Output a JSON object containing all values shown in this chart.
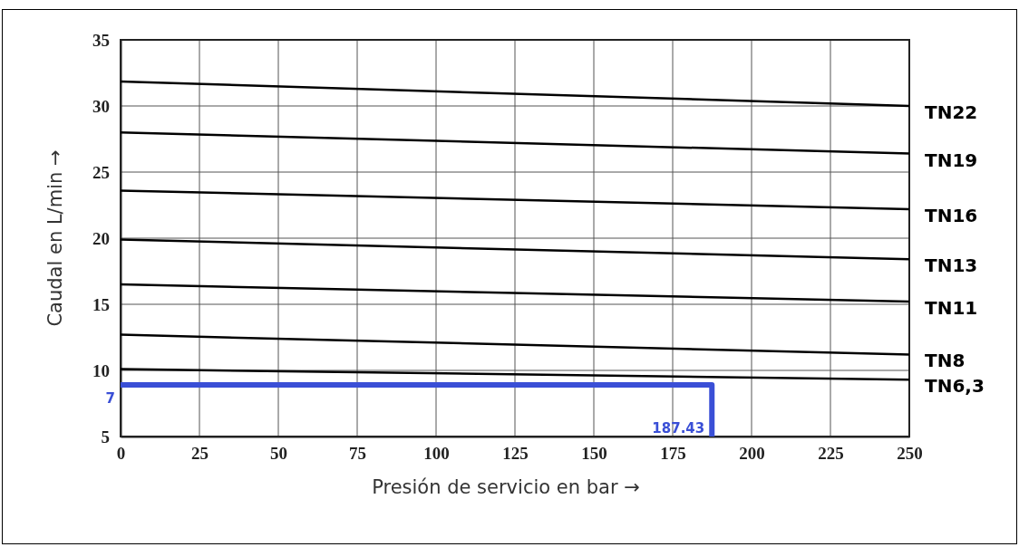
{
  "chart_data": {
    "type": "line",
    "xlabel": "Presión de servicio en bar →",
    "ylabel": "Caudal en L/min →",
    "xlim": [
      0,
      250
    ],
    "xticks": [
      0,
      25,
      50,
      75,
      100,
      125,
      150,
      175,
      200,
      225,
      250
    ],
    "ylim": [
      5,
      35
    ],
    "yticks": [
      5,
      10,
      15,
      20,
      25,
      30,
      35
    ],
    "grid": true,
    "marker": "none",
    "line_style": "solid",
    "series": [
      {
        "name": "TN22",
        "color": "#000000",
        "x": [
          0,
          250
        ],
        "values": [
          31.85,
          30.0
        ]
      },
      {
        "name": "TN19",
        "color": "#000000",
        "x": [
          0,
          250
        ],
        "values": [
          28.0,
          26.4
        ]
      },
      {
        "name": "TN16",
        "color": "#000000",
        "x": [
          0,
          250
        ],
        "values": [
          23.6,
          22.2
        ]
      },
      {
        "name": "TN13",
        "color": "#000000",
        "x": [
          0,
          250
        ],
        "values": [
          19.9,
          18.4
        ]
      },
      {
        "name": "TN11",
        "color": "#000000",
        "x": [
          0,
          250
        ],
        "values": [
          16.5,
          15.2
        ]
      },
      {
        "name": "TN8",
        "color": "#000000",
        "x": [
          0,
          250
        ],
        "values": [
          12.7,
          11.2
        ]
      },
      {
        "name": "TN6,3",
        "color": "#000000",
        "x": [
          0,
          250
        ],
        "values": [
          10.1,
          9.3
        ]
      },
      {
        "color": "#3a4fd6",
        "x": [
          0,
          187.43,
          187.43
        ],
        "values": [
          8.9,
          8.9,
          5
        ]
      }
    ],
    "annotations": [
      {
        "text": "7",
        "x": 0,
        "y": 8.9
      },
      {
        "text": "187.43",
        "x": 187.43,
        "y": 5
      }
    ]
  }
}
